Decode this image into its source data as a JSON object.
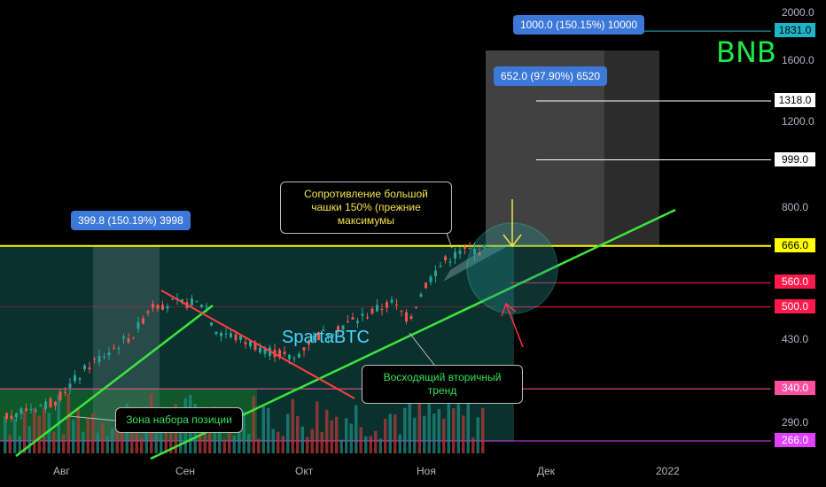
{
  "chart_data": {
    "type": "candlestick",
    "symbol": "BNB",
    "watermark": "SpartaBTC",
    "x_labels": [
      "Авг",
      "Сен",
      "Окт",
      "Ноя",
      "Дек",
      "2022"
    ],
    "y_ticks": [
      2000,
      1600,
      1200,
      800,
      430,
      290
    ],
    "y_tick_labels": [
      "2000.0",
      "1600.0",
      "1200.0",
      "800.0",
      "430.0",
      "290.0"
    ],
    "y_scale": "log",
    "price_levels": [
      {
        "value": 1831.0,
        "label": "1831.0",
        "color": "#1fb5c9",
        "text_color": "#000000"
      },
      {
        "value": 1318.0,
        "label": "1318.0",
        "color": "#ffffff",
        "text_color": "#000000"
      },
      {
        "value": 999.0,
        "label": "999.0",
        "color": "#ffffff",
        "text_color": "#000000"
      },
      {
        "value": 666.0,
        "label": "666.0",
        "color": "#ffff00",
        "text_color": "#000000"
      },
      {
        "value": 560.0,
        "label": "560.0",
        "color": "#ff1a4b",
        "text_color": "#ffffff"
      },
      {
        "value": 500.0,
        "label": "500.0",
        "color": "#ff1a4b",
        "text_color": "#ffffff"
      },
      {
        "value": 340.0,
        "label": "340.0",
        "color": "#ff4fa0",
        "text_color": "#ffffff"
      },
      {
        "value": 266.0,
        "label": "266.0",
        "color": "#e040ff",
        "text_color": "#ffffff"
      }
    ],
    "measurements": [
      {
        "label": "399.8 (150.19%) 3998"
      },
      {
        "label": "652.0 (97.90%) 6520"
      },
      {
        "label": "1000.0 (150.15%) 10000"
      }
    ],
    "annotations": {
      "resistance": "Сопротивление большой чашки 150% (прежние максимумы",
      "trend": "Восходящий вторичный тренд",
      "accumulation": "Зона набора позиции"
    },
    "colors": {
      "up": "#26a69a",
      "down": "#ef5350",
      "resistance_line": "#ffff00",
      "trend_line": "#3ce63c",
      "downtrend_line": "#ff4040"
    }
  }
}
